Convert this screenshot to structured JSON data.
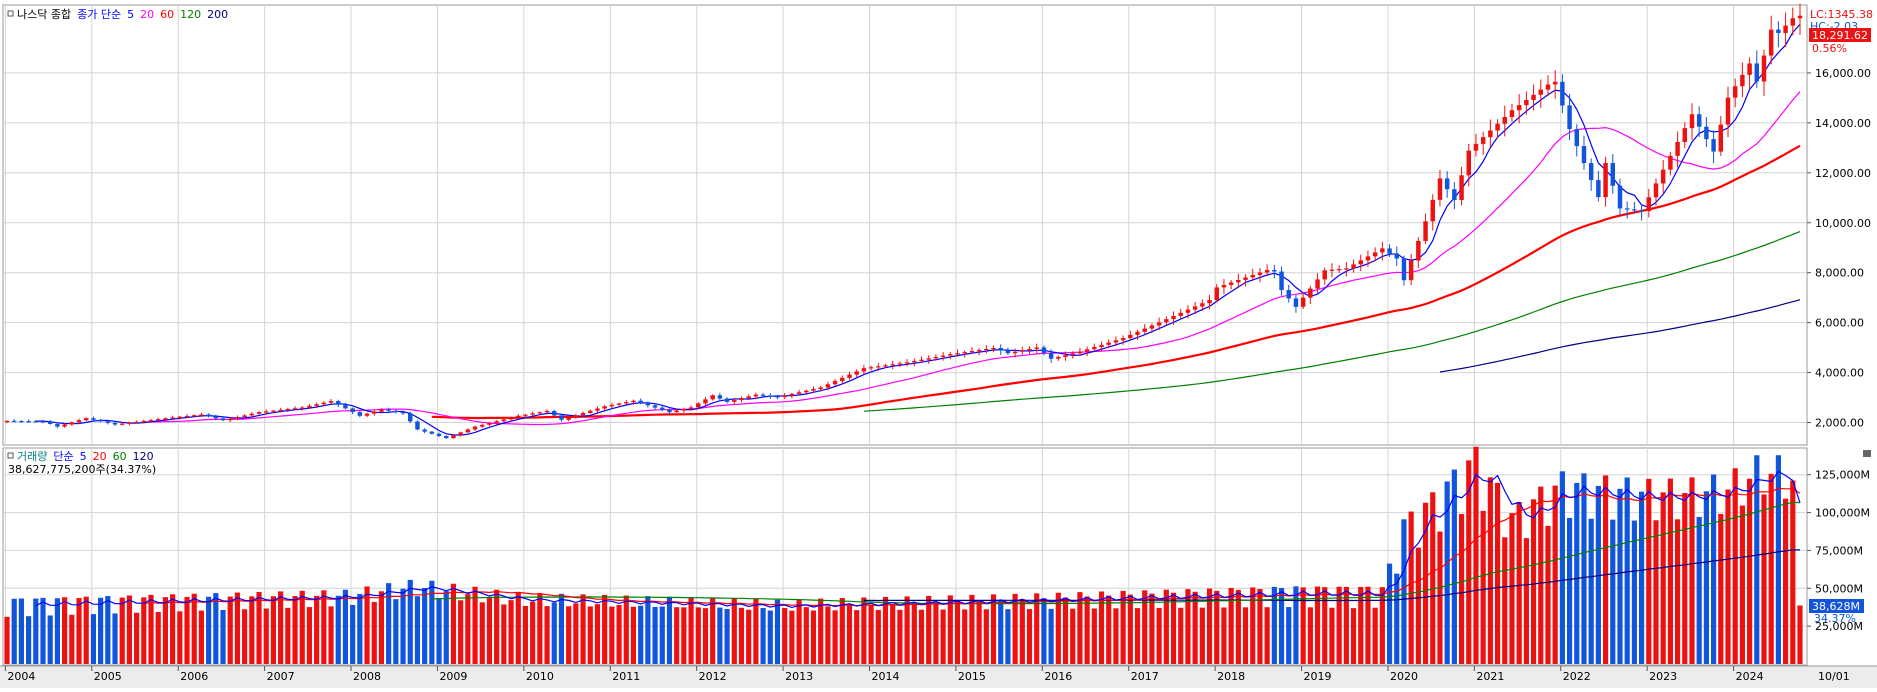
{
  "price_panel": {
    "legend": [
      {
        "text": "나스닥 종합",
        "color": "#000000"
      },
      {
        "text": "종가 단순",
        "color": "#0000ff"
      },
      {
        "text": "5",
        "color": "#0000ff"
      },
      {
        "text": "20",
        "color": "#ff00ff"
      },
      {
        "text": "60",
        "color": "#ff0000"
      },
      {
        "text": "120",
        "color": "#008000"
      },
      {
        "text": "200",
        "color": "#000080"
      }
    ],
    "right_info": {
      "lc": "LC:1345.38",
      "hc": "HC:-2.03",
      "price_badge": "18,291.62",
      "pct": "0.56%"
    },
    "y_ticks": [
      "2,000.00",
      "4,000.00",
      "6,000.00",
      "8,000.00",
      "10,000.00",
      "12,000.00",
      "14,000.00",
      "16,000.00"
    ]
  },
  "volume_panel": {
    "legend": [
      {
        "text": "거래량",
        "color": "#008080"
      },
      {
        "text": "단순",
        "color": "#0000ff"
      },
      {
        "text": "5",
        "color": "#0000ff"
      },
      {
        "text": "20",
        "color": "#ff0000"
      },
      {
        "text": "60",
        "color": "#008000"
      },
      {
        "text": "120",
        "color": "#000080"
      }
    ],
    "info": "38,627,775,200주(34.37%)",
    "y_ticks": [
      "25,000M",
      "50,000M",
      "75,000M",
      "100,000M",
      "125,000M"
    ],
    "vol_badge": "38,628M",
    "vol_pct": "34.37%"
  },
  "x_labels": [
    "2004",
    "2005",
    "2006",
    "2007",
    "2008",
    "2009",
    "2010",
    "2011",
    "2012",
    "2013",
    "2014",
    "2015",
    "2016",
    "2017",
    "2018",
    "2019",
    "2020",
    "2021",
    "2022",
    "2023",
    "2024"
  ],
  "x_right_label": "10/01",
  "colors": {
    "up": "#ee1111",
    "down": "#1155dd",
    "ma5": "#0000ff",
    "ma20": "#ff00ff",
    "ma60": "#ff0000",
    "ma120": "#008000",
    "ma200": "#000080",
    "grid": "#d4d4d4",
    "badge_price": "#ee1111",
    "badge_volume": "#1155dd"
  },
  "chart_data": [
    {
      "type": "candlestick",
      "title": "나스닥 종합",
      "period": "monthly",
      "x_range": [
        "2004-01",
        "2024-10"
      ],
      "ylim": [
        1100,
        18600
      ],
      "grid": true,
      "moving_averages": [
        5,
        20,
        60,
        120,
        200
      ],
      "last_close": 18291.62,
      "anchors_monthly_close": [
        [
          "2004-01",
          2066
        ],
        [
          "2004-06",
          2048
        ],
        [
          "2004-08",
          1838
        ],
        [
          "2004-12",
          2175
        ],
        [
          "2005-04",
          1922
        ],
        [
          "2005-12",
          2205
        ],
        [
          "2006-04",
          2322
        ],
        [
          "2006-07",
          2091
        ],
        [
          "2006-12",
          2415
        ],
        [
          "2007-06",
          2603
        ],
        [
          "2007-10",
          2859
        ],
        [
          "2008-02",
          2271
        ],
        [
          "2008-05",
          2522
        ],
        [
          "2008-08",
          2367
        ],
        [
          "2008-10",
          1720
        ],
        [
          "2009-02",
          1377
        ],
        [
          "2009-06",
          1835
        ],
        [
          "2009-12",
          2269
        ],
        [
          "2010-04",
          2461
        ],
        [
          "2010-06",
          2109
        ],
        [
          "2010-12",
          2652
        ],
        [
          "2011-04",
          2873
        ],
        [
          "2011-09",
          2415
        ],
        [
          "2011-12",
          2605
        ],
        [
          "2012-03",
          3091
        ],
        [
          "2012-05",
          2827
        ],
        [
          "2012-09",
          3116
        ],
        [
          "2012-12",
          3019
        ],
        [
          "2013-06",
          3403
        ],
        [
          "2013-12",
          4176
        ],
        [
          "2014-06",
          4408
        ],
        [
          "2014-12",
          4736
        ],
        [
          "2015-06",
          4986
        ],
        [
          "2015-08",
          4776
        ],
        [
          "2015-12",
          5007
        ],
        [
          "2016-02",
          4557
        ],
        [
          "2016-06",
          4842
        ],
        [
          "2016-12",
          5383
        ],
        [
          "2017-06",
          6140
        ],
        [
          "2017-12",
          6903
        ],
        [
          "2018-01",
          7411
        ],
        [
          "2018-08",
          8109
        ],
        [
          "2018-09",
          8046
        ],
        [
          "2018-10",
          7305
        ],
        [
          "2018-12",
          6635
        ],
        [
          "2019-04",
          8095
        ],
        [
          "2019-07",
          8175
        ],
        [
          "2019-12",
          8973
        ],
        [
          "2020-02",
          8567
        ],
        [
          "2020-03",
          7700
        ],
        [
          "2020-06",
          10058
        ],
        [
          "2020-08",
          11775
        ],
        [
          "2020-10",
          10911
        ],
        [
          "2020-12",
          12888
        ],
        [
          "2021-06",
          14504
        ],
        [
          "2021-11",
          15538
        ],
        [
          "2021-12",
          15645
        ],
        [
          "2022-02",
          13751
        ],
        [
          "2022-06",
          11028
        ],
        [
          "2022-07",
          12391
        ],
        [
          "2022-09",
          10576
        ],
        [
          "2022-12",
          10466
        ],
        [
          "2023-06",
          13788
        ],
        [
          "2023-07",
          14346
        ],
        [
          "2023-10",
          12851
        ],
        [
          "2023-12",
          15011
        ],
        [
          "2024-03",
          16379
        ],
        [
          "2024-04",
          15658
        ],
        [
          "2024-06",
          17733
        ],
        [
          "2024-07",
          17599
        ],
        [
          "2024-09",
          18189
        ],
        [
          "2024-10",
          18291.62
        ]
      ]
    },
    {
      "type": "bar",
      "title": "거래량",
      "period": "monthly",
      "ylim": [
        0,
        140000
      ],
      "unit": "M",
      "moving_averages": [
        5,
        20,
        60,
        120
      ],
      "last_value": 38628,
      "anchors_monthly_volume_M": [
        [
          "2004-01",
          38000
        ],
        [
          "2007-12",
          42000
        ],
        [
          "2008-10",
          48000
        ],
        [
          "2009-12",
          40000
        ],
        [
          "2012-12",
          36000
        ],
        [
          "2015-12",
          40000
        ],
        [
          "2018-12",
          45000
        ],
        [
          "2019-12",
          45000
        ],
        [
          "2020-03",
          85000
        ],
        [
          "2020-06",
          95000
        ],
        [
          "2021-01",
          125000
        ],
        [
          "2021-06",
          90000
        ],
        [
          "2022-01",
          110000
        ],
        [
          "2022-12",
          105000
        ],
        [
          "2023-06",
          105000
        ],
        [
          "2023-12",
          108000
        ],
        [
          "2024-05",
          120000
        ],
        [
          "2024-09",
          115000
        ],
        [
          "2024-10",
          38628
        ]
      ]
    }
  ]
}
